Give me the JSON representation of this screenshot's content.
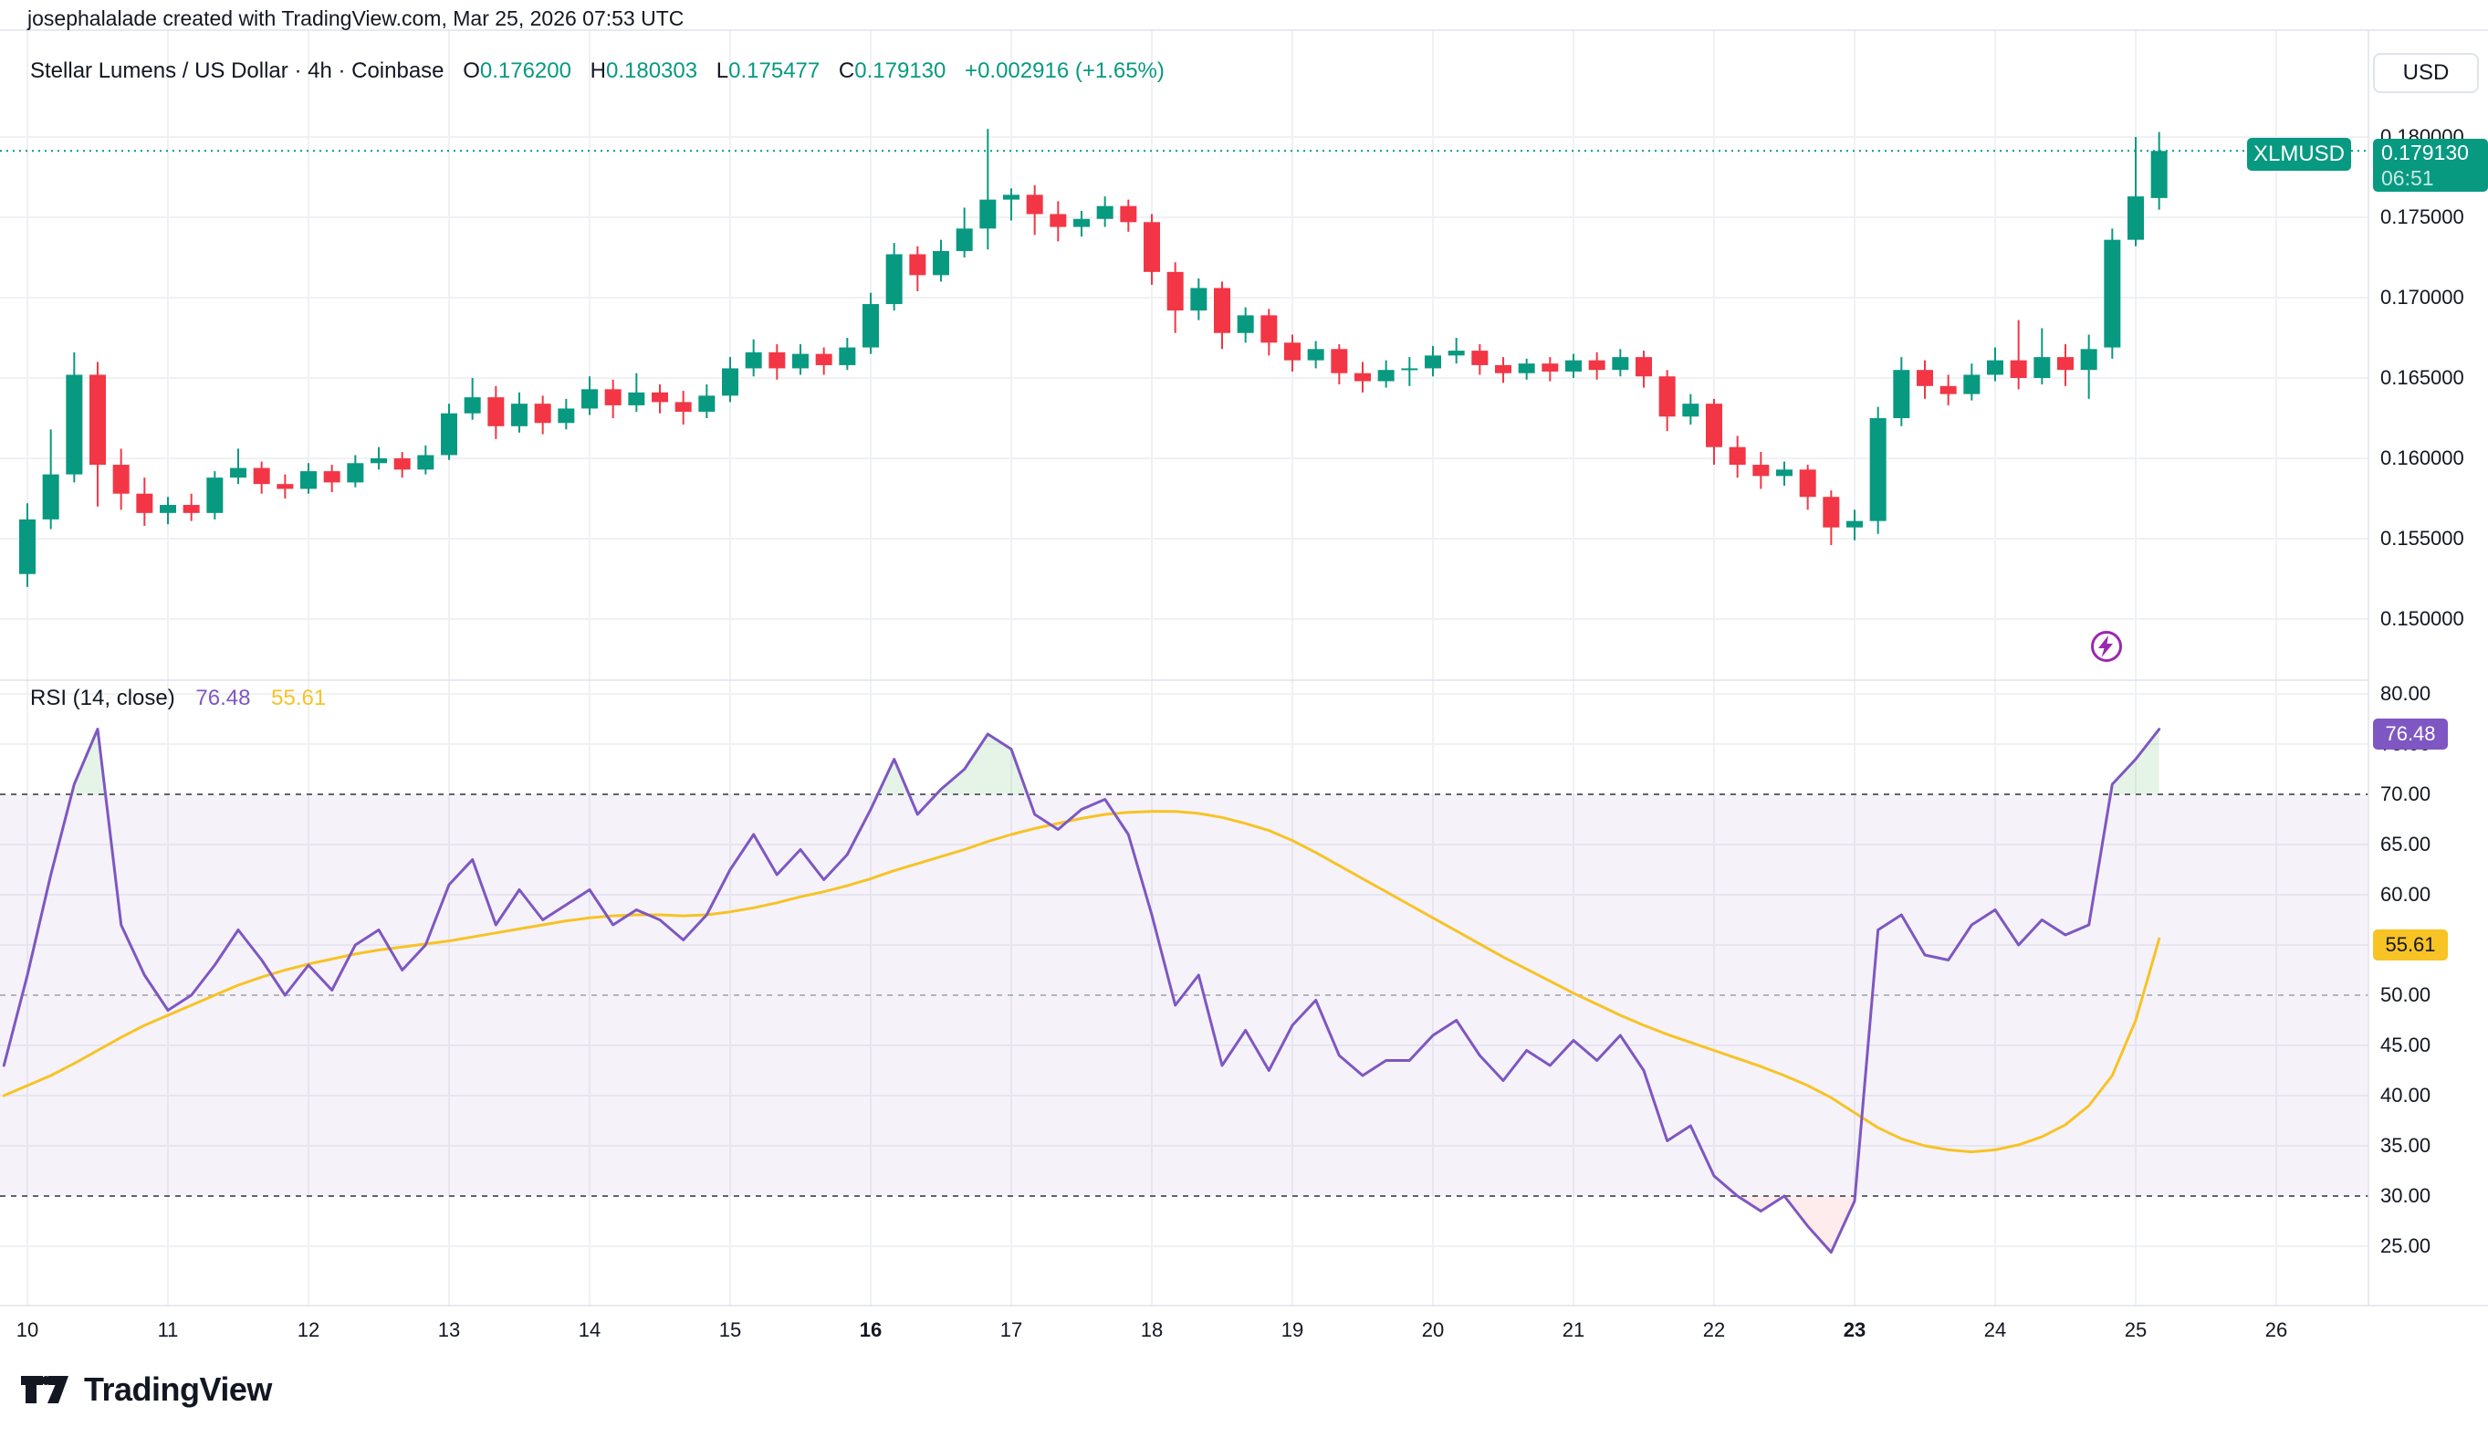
{
  "ui": {
    "header": {
      "attribution": "josephalalade created with TradingView.com, Mar 25, 2026 07:53 UTC"
    },
    "title": {
      "symbol": "Stellar Lumens / US Dollar · 4h · Coinbase",
      "o_label": "O",
      "o": "0.176200",
      "h_label": "H",
      "h": "0.180303",
      "l_label": "L",
      "l": "0.175477",
      "c_label": "C",
      "c": "0.179130",
      "change": "+0.002916 (+1.65%)"
    },
    "currency": "USD",
    "symbol_badge": "XLMUSD",
    "price_badge": {
      "price": "0.179130",
      "countdown": "06:51"
    },
    "rsi_legend": {
      "title": "RSI (14, close)",
      "rsi_value": "76.48",
      "ma_value": "55.61"
    },
    "rsi_badge": "76.48",
    "ma_badge": "55.61",
    "footer": {
      "brand": "TradingView"
    },
    "axes": {
      "price": [
        {
          "text": "0.180000",
          "value": 0.18
        },
        {
          "text": "0.175000",
          "value": 0.175
        },
        {
          "text": "0.170000",
          "value": 0.17
        },
        {
          "text": "0.165000",
          "value": 0.165
        },
        {
          "text": "0.160000",
          "value": 0.16
        },
        {
          "text": "0.155000",
          "value": 0.155
        },
        {
          "text": "0.150000",
          "value": 0.15
        }
      ],
      "rsi": [
        {
          "text": "80.00",
          "value": 80
        },
        {
          "text": "75.00",
          "value": 75
        },
        {
          "text": "70.00",
          "value": 70
        },
        {
          "text": "65.00",
          "value": 65
        },
        {
          "text": "60.00",
          "value": 60
        },
        {
          "text": "55.00",
          "value": 55
        },
        {
          "text": "50.00",
          "value": 50
        },
        {
          "text": "45.00",
          "value": 45
        },
        {
          "text": "40.00",
          "value": 40
        },
        {
          "text": "35.00",
          "value": 35
        },
        {
          "text": "30.00",
          "value": 30
        },
        {
          "text": "25.00",
          "value": 25
        }
      ],
      "time": [
        {
          "text": "10",
          "value": 10,
          "bold": false
        },
        {
          "text": "11",
          "value": 11,
          "bold": false
        },
        {
          "text": "12",
          "value": 12,
          "bold": false
        },
        {
          "text": "13",
          "value": 13,
          "bold": false
        },
        {
          "text": "14",
          "value": 14,
          "bold": false
        },
        {
          "text": "15",
          "value": 15,
          "bold": false
        },
        {
          "text": "16",
          "value": 16,
          "bold": true
        },
        {
          "text": "17",
          "value": 17,
          "bold": false
        },
        {
          "text": "18",
          "value": 18,
          "bold": false
        },
        {
          "text": "19",
          "value": 19,
          "bold": false
        },
        {
          "text": "20",
          "value": 20,
          "bold": false
        },
        {
          "text": "21",
          "value": 21,
          "bold": false
        },
        {
          "text": "22",
          "value": 22,
          "bold": false
        },
        {
          "text": "23",
          "value": 23,
          "bold": true
        },
        {
          "text": "24",
          "value": 24,
          "bold": false
        },
        {
          "text": "25",
          "value": 25,
          "bold": false
        },
        {
          "text": "26",
          "value": 26,
          "bold": false
        }
      ]
    }
  },
  "colors": {
    "up": "#089981",
    "down": "#f23645",
    "rsi_line": "#7e57c2",
    "ma_line": "#f7c325",
    "band_fill": "rgba(126,87,194,0.08)",
    "overbought_fill": "rgba(102,187,106,0.16)",
    "oversold_fill": "rgba(242,54,69,0.10)",
    "grid": "#f0f1f4",
    "axis_border": "#e0e3eb",
    "dash_strong": "#60636e",
    "dash_mid": "#b2b5be",
    "last_price_line": "#089981",
    "lightning": "#9c27b0",
    "text": "#131722"
  },
  "chart_data": [
    {
      "type": "candlestick",
      "title": "Stellar Lumens / US Dollar · 4h · Coinbase",
      "symbol": "XLMUSD",
      "timeframe": "4h",
      "exchange": "Coinbase",
      "ylabel": "USD",
      "x_axis": {
        "unit": "day of month (Mar 2026)",
        "start_day": 10,
        "step_days": 0.166667,
        "ticks": [
          10,
          11,
          12,
          13,
          14,
          15,
          16,
          17,
          18,
          19,
          20,
          21,
          22,
          23,
          24,
          25,
          26
        ],
        "bold_ticks": [
          16,
          23
        ]
      },
      "y_axis": {
        "ticks": [
          0.18,
          0.175,
          0.17,
          0.165,
          0.16,
          0.155,
          0.15
        ],
        "range": [
          0.1483,
          0.1818
        ]
      },
      "last": {
        "open": 0.1762,
        "high": 0.180303,
        "low": 0.175477,
        "close": 0.17913,
        "change": "+0.002916",
        "change_pct": "+1.65%",
        "countdown": "06:51"
      },
      "grid": true,
      "ohlc": [
        [
          0.1528,
          0.1572,
          0.152,
          0.1562
        ],
        [
          0.1562,
          0.1618,
          0.1556,
          0.159
        ],
        [
          0.159,
          0.1666,
          0.1585,
          0.1652
        ],
        [
          0.1652,
          0.166,
          0.157,
          0.1596
        ],
        [
          0.1596,
          0.1606,
          0.1568,
          0.1578
        ],
        [
          0.1578,
          0.1588,
          0.1558,
          0.1566
        ],
        [
          0.1566,
          0.1576,
          0.1559,
          0.1571
        ],
        [
          0.1571,
          0.1578,
          0.1561,
          0.1566
        ],
        [
          0.1566,
          0.1592,
          0.1562,
          0.1588
        ],
        [
          0.1588,
          0.1606,
          0.1584,
          0.1594
        ],
        [
          0.1594,
          0.1598,
          0.1578,
          0.1584
        ],
        [
          0.1584,
          0.159,
          0.1575,
          0.1581
        ],
        [
          0.1581,
          0.1597,
          0.1578,
          0.1592
        ],
        [
          0.1592,
          0.1596,
          0.1579,
          0.1585
        ],
        [
          0.1585,
          0.1602,
          0.1582,
          0.1597
        ],
        [
          0.1597,
          0.1607,
          0.1593,
          0.16
        ],
        [
          0.16,
          0.1604,
          0.1588,
          0.1593
        ],
        [
          0.1593,
          0.1608,
          0.159,
          0.1602
        ],
        [
          0.1602,
          0.1634,
          0.1599,
          0.1628
        ],
        [
          0.1628,
          0.165,
          0.1624,
          0.1638
        ],
        [
          0.1638,
          0.1645,
          0.1612,
          0.162
        ],
        [
          0.162,
          0.1641,
          0.1616,
          0.1634
        ],
        [
          0.1634,
          0.1639,
          0.1615,
          0.1622
        ],
        [
          0.1622,
          0.1637,
          0.1618,
          0.1631
        ],
        [
          0.1631,
          0.1651,
          0.1627,
          0.1643
        ],
        [
          0.1643,
          0.1649,
          0.1625,
          0.1633
        ],
        [
          0.1633,
          0.1653,
          0.1629,
          0.1641
        ],
        [
          0.1641,
          0.1646,
          0.1628,
          0.1635
        ],
        [
          0.1635,
          0.1642,
          0.1621,
          0.1629
        ],
        [
          0.1629,
          0.1646,
          0.1625,
          0.1639
        ],
        [
          0.1639,
          0.1663,
          0.1635,
          0.1656
        ],
        [
          0.1656,
          0.1674,
          0.1651,
          0.1666
        ],
        [
          0.1666,
          0.1671,
          0.1649,
          0.1656
        ],
        [
          0.1656,
          0.1671,
          0.1652,
          0.1665
        ],
        [
          0.1665,
          0.1669,
          0.1652,
          0.1658
        ],
        [
          0.1658,
          0.1675,
          0.1655,
          0.1669
        ],
        [
          0.1669,
          0.1703,
          0.1665,
          0.1696
        ],
        [
          0.1696,
          0.1734,
          0.1692,
          0.1727
        ],
        [
          0.1727,
          0.1732,
          0.1704,
          0.1714
        ],
        [
          0.1714,
          0.1736,
          0.171,
          0.1729
        ],
        [
          0.1729,
          0.1756,
          0.1725,
          0.1743
        ],
        [
          0.1743,
          0.1805,
          0.173,
          0.1761
        ],
        [
          0.1761,
          0.1768,
          0.1748,
          0.1764
        ],
        [
          0.1764,
          0.177,
          0.1739,
          0.1752
        ],
        [
          0.1752,
          0.176,
          0.1735,
          0.1744
        ],
        [
          0.1744,
          0.1754,
          0.1738,
          0.1749
        ],
        [
          0.1749,
          0.1763,
          0.1744,
          0.1757
        ],
        [
          0.1757,
          0.1761,
          0.1741,
          0.1747
        ],
        [
          0.1747,
          0.1752,
          0.1708,
          0.1716
        ],
        [
          0.1716,
          0.1722,
          0.1678,
          0.1692
        ],
        [
          0.1692,
          0.1712,
          0.1686,
          0.1706
        ],
        [
          0.1706,
          0.171,
          0.1668,
          0.1678
        ],
        [
          0.1678,
          0.1694,
          0.1672,
          0.1689
        ],
        [
          0.1689,
          0.1693,
          0.1664,
          0.1672
        ],
        [
          0.1672,
          0.1677,
          0.1654,
          0.1661
        ],
        [
          0.1661,
          0.1673,
          0.1656,
          0.1668
        ],
        [
          0.1668,
          0.1671,
          0.1646,
          0.1653
        ],
        [
          0.1653,
          0.166,
          0.1641,
          0.1648
        ],
        [
          0.1648,
          0.1661,
          0.1644,
          0.1655
        ],
        [
          0.1655,
          0.1663,
          0.1645,
          0.1656
        ],
        [
          0.1656,
          0.167,
          0.1651,
          0.1664
        ],
        [
          0.1664,
          0.1675,
          0.1659,
          0.1667
        ],
        [
          0.1667,
          0.1671,
          0.1652,
          0.1658
        ],
        [
          0.1658,
          0.1663,
          0.1647,
          0.1653
        ],
        [
          0.1653,
          0.1662,
          0.1649,
          0.1659
        ],
        [
          0.1659,
          0.1663,
          0.1648,
          0.1654
        ],
        [
          0.1654,
          0.1665,
          0.165,
          0.1661
        ],
        [
          0.1661,
          0.1666,
          0.1649,
          0.1655
        ],
        [
          0.1655,
          0.1668,
          0.1651,
          0.1663
        ],
        [
          0.1663,
          0.1667,
          0.1644,
          0.1651
        ],
        [
          0.1651,
          0.1655,
          0.1617,
          0.1626
        ],
        [
          0.1626,
          0.164,
          0.1621,
          0.1634
        ],
        [
          0.1634,
          0.1637,
          0.1596,
          0.1607
        ],
        [
          0.1607,
          0.1614,
          0.1588,
          0.1596
        ],
        [
          0.1596,
          0.1604,
          0.1581,
          0.1589
        ],
        [
          0.1589,
          0.1598,
          0.1583,
          0.1593
        ],
        [
          0.1593,
          0.1596,
          0.1568,
          0.1576
        ],
        [
          0.1576,
          0.158,
          0.1546,
          0.1557
        ],
        [
          0.1557,
          0.1568,
          0.1549,
          0.1561
        ],
        [
          0.1561,
          0.1632,
          0.1553,
          0.1625
        ],
        [
          0.1625,
          0.1663,
          0.162,
          0.1655
        ],
        [
          0.1655,
          0.1661,
          0.1637,
          0.1645
        ],
        [
          0.1645,
          0.1652,
          0.1633,
          0.164
        ],
        [
          0.164,
          0.1659,
          0.1636,
          0.1652
        ],
        [
          0.1652,
          0.1669,
          0.1648,
          0.1661
        ],
        [
          0.1661,
          0.1686,
          0.1643,
          0.165
        ],
        [
          0.165,
          0.1681,
          0.1646,
          0.1663
        ],
        [
          0.1663,
          0.1671,
          0.1645,
          0.1655
        ],
        [
          0.1655,
          0.1677,
          0.1637,
          0.1668
        ],
        [
          0.1669,
          0.1743,
          0.1662,
          0.1736
        ],
        [
          0.1736,
          0.18,
          0.1732,
          0.1763
        ],
        [
          0.1762,
          0.180303,
          0.175477,
          0.17913
        ]
      ]
    },
    {
      "type": "line",
      "title": "RSI (14, close)",
      "x_axis": {
        "unit": "day of month (Mar 2026)",
        "start_day": 9.8333,
        "step_days": 0.166667
      },
      "y_axis": {
        "ticks": [
          80,
          75,
          70,
          65,
          60,
          55,
          50,
          45,
          40,
          35,
          30,
          25
        ],
        "range": [
          21.6,
          83.9
        ]
      },
      "levels": {
        "overbought": 70,
        "middle": 50,
        "oversold": 30
      },
      "legend_position": "top-left",
      "series": [
        {
          "name": "RSI",
          "color": "#7e57c2",
          "current": 76.48,
          "values": [
            43,
            52,
            62,
            71,
            76.5,
            57,
            52,
            48.5,
            50,
            53,
            56.5,
            53.5,
            50,
            53,
            50.5,
            55,
            56.5,
            52.5,
            55,
            61,
            63.5,
            57,
            60.5,
            57.5,
            59,
            60.5,
            57,
            58.5,
            57.5,
            55.5,
            58,
            62.5,
            66,
            62,
            64.5,
            61.5,
            64,
            68.5,
            73.5,
            68,
            70.5,
            72.5,
            76,
            74.5,
            68,
            66.5,
            68.5,
            69.5,
            66,
            58,
            49,
            52,
            43,
            46.5,
            42.5,
            47,
            49.5,
            44,
            42,
            43.5,
            43.5,
            46,
            47.5,
            44,
            41.5,
            44.5,
            43,
            45.5,
            43.5,
            46,
            42.5,
            35.5,
            37,
            32,
            30,
            28.5,
            30,
            27,
            24.4,
            29.5,
            56.5,
            58,
            54,
            53.5,
            57,
            58.5,
            55,
            57.5,
            56,
            57,
            71,
            73.5,
            76.48
          ]
        },
        {
          "name": "RSI-based MA",
          "color": "#f7c325",
          "current": 55.61,
          "values": [
            40,
            41,
            42,
            43.2,
            44.5,
            45.8,
            47,
            48,
            49,
            50,
            51,
            51.8,
            52.5,
            53.1,
            53.6,
            54.1,
            54.5,
            54.8,
            55.1,
            55.4,
            55.8,
            56.2,
            56.6,
            57,
            57.4,
            57.7,
            57.9,
            58,
            58,
            57.9,
            58,
            58.3,
            58.7,
            59.2,
            59.8,
            60.3,
            60.9,
            61.6,
            62.4,
            63.1,
            63.8,
            64.5,
            65.3,
            66,
            66.6,
            67.1,
            67.6,
            68,
            68.2,
            68.3,
            68.3,
            68.1,
            67.7,
            67.1,
            66.4,
            65.4,
            64.2,
            62.9,
            61.6,
            60.3,
            59,
            57.7,
            56.4,
            55.1,
            53.8,
            52.6,
            51.4,
            50.2,
            49.1,
            48,
            47,
            46.1,
            45.3,
            44.5,
            43.7,
            42.9,
            42,
            41,
            39.8,
            38.3,
            36.8,
            35.7,
            35,
            34.6,
            34.4,
            34.6,
            35.1,
            35.9,
            37.1,
            39,
            42,
            47.5,
            55.61
          ]
        }
      ]
    }
  ]
}
